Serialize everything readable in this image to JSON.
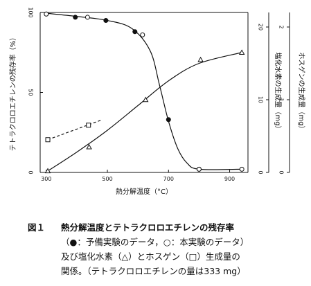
{
  "chart_data": {
    "type": "line",
    "xlabel": "熱分解温度（°C）",
    "x_ticks": [
      300,
      500,
      700,
      900
    ],
    "xlim": [
      280,
      960
    ],
    "axes": {
      "left": {
        "label": "テトラクロロエチレンの残存率（%）",
        "ylim": [
          0,
          100
        ],
        "ticks": [
          0,
          50,
          100
        ]
      },
      "right1": {
        "label": "塩化水素の生成量（mg）",
        "ylim": [
          0,
          22
        ],
        "ticks": [
          0,
          10,
          20
        ]
      },
      "right2": {
        "label": "ホスゲンの生成量（mg）",
        "ylim": [
          0,
          2.2
        ],
        "ticks": [
          0,
          1,
          2
        ]
      }
    },
    "series": [
      {
        "marker": "filled-circle",
        "axis": "left",
        "x": [
          300,
          395,
          495,
          590,
          700,
          800
        ],
        "y": [
          99,
          97,
          95,
          88,
          33,
          2
        ]
      },
      {
        "marker": "open-circle",
        "axis": "left",
        "x": [
          300,
          435,
          615,
          800,
          940
        ],
        "y": [
          99,
          97,
          86,
          2,
          2
        ]
      },
      {
        "marker": "triangle",
        "axis": "right1",
        "x": [
          305,
          440,
          625,
          805,
          940
        ],
        "y": [
          0.2,
          3.5,
          10.0,
          15.5,
          16.5
        ]
      },
      {
        "marker": "square",
        "axis": "right2",
        "x": [
          305,
          438
        ],
        "y": [
          0.45,
          0.65
        ]
      }
    ],
    "fit_lines": {
      "residual": {
        "x": [
          300,
          400,
          500,
          580,
          640,
          670,
          700,
          730,
          760,
          800,
          940
        ],
        "y": [
          99.5,
          97.5,
          95,
          90,
          76,
          55,
          32,
          15,
          6,
          2,
          2
        ]
      },
      "hcl": {
        "x": [
          305,
          400,
          500,
          600,
          700,
          800,
          940
        ],
        "y": [
          0.2,
          2.8,
          5.8,
          9.2,
          12.6,
          15.0,
          16.5
        ]
      },
      "phosgene": {
        "x": [
          305,
          480
        ],
        "y": [
          0.45,
          0.72
        ]
      }
    }
  },
  "caption": {
    "figure_number": "図１",
    "title": "熱分解温度とテトラクロロエチレンの残存率",
    "lines": [
      "（●：予備実験のデータ，○：本実験のデータ）",
      "及び塩化水素（△）とホスゲン（□）生成量の",
      "関係。（テトラクロロエチレンの量は333 mg）"
    ]
  }
}
